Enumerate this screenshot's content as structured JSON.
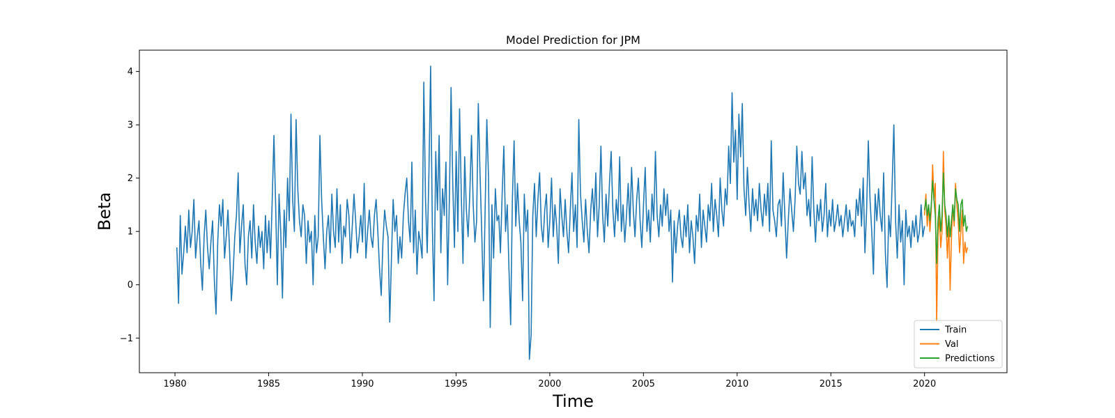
{
  "chart_data": {
    "type": "line",
    "title": "Model Prediction for JPM",
    "xlabel": "Time",
    "ylabel": "Beta",
    "xlim": [
      1978.1,
      2024.4
    ],
    "ylim": [
      -1.65,
      4.4
    ],
    "x_ticks": [
      1980,
      1985,
      1990,
      1995,
      2000,
      2005,
      2010,
      2015,
      2020
    ],
    "y_ticks": [
      -1,
      0,
      1,
      2,
      3,
      4
    ],
    "y_tick_labels": [
      "−1",
      "0",
      "1",
      "2",
      "3",
      "4"
    ],
    "grid": false,
    "legend_position": "lower-right",
    "series": [
      {
        "name": "Train",
        "color": "#1f77b4",
        "x_range": [
          1980.1,
          2020.0
        ],
        "values": [
          0.7,
          -0.35,
          1.3,
          0.2,
          0.6,
          1.1,
          0.6,
          1.4,
          0.7,
          1.0,
          1.6,
          0.5,
          0.9,
          1.2,
          0.4,
          -0.1,
          0.9,
          1.4,
          0.7,
          0.3,
          0.8,
          1.2,
          0.1,
          -0.55,
          0.8,
          1.5,
          1.1,
          1.6,
          0.5,
          0.9,
          1.4,
          0.6,
          -0.3,
          0.2,
          0.9,
          1.3,
          2.1,
          0.6,
          1.1,
          1.5,
          0.4,
          0.0,
          0.9,
          1.2,
          0.5,
          1.5,
          0.8,
          0.4,
          1.1,
          0.7,
          1.0,
          0.3,
          1.3,
          0.6,
          1.2,
          0.5,
          1.6,
          2.8,
          1.5,
          0.0,
          1.7,
          1.0,
          -0.25,
          1.4,
          0.7,
          2.0,
          1.2,
          3.2,
          1.6,
          1.0,
          3.1,
          1.8,
          1.2,
          0.9,
          1.5,
          1.3,
          0.4,
          1.2,
          0.8,
          1.0,
          0.0,
          1.3,
          0.6,
          0.9,
          2.8,
          1.6,
          0.9,
          0.3,
          1.0,
          1.3,
          0.6,
          1.7,
          1.0,
          0.7,
          1.8,
          0.8,
          1.5,
          0.4,
          1.1,
          0.9,
          1.6,
          1.3,
          0.5,
          1.1,
          1.7,
          1.2,
          0.6,
          0.9,
          1.3,
          0.8,
          1.9,
          0.5,
          1.0,
          1.4,
          0.9,
          0.7,
          1.3,
          1.6,
          1.0,
          0.3,
          -0.2,
          0.8,
          1.4,
          1.1,
          0.9,
          -0.7,
          0.5,
          1.6,
          1.0,
          1.3,
          0.4,
          0.9,
          0.5,
          1.3,
          1.7,
          2.0,
          1.2,
          0.8,
          2.3,
          0.6,
          1.4,
          0.2,
          1.0,
          0.8,
          0.5,
          3.8,
          1.6,
          0.6,
          2.1,
          4.1,
          1.1,
          -0.3,
          2.5,
          1.4,
          2.8,
          0.6,
          1.8,
          1.3,
          2.3,
          0.0,
          1.6,
          3.7,
          1.9,
          0.7,
          2.5,
          1.0,
          3.3,
          1.7,
          0.4,
          2.4,
          1.4,
          0.9,
          1.7,
          2.8,
          1.5,
          0.8,
          1.2,
          3.4,
          2.1,
          1.0,
          -0.3,
          1.4,
          3.1,
          2.0,
          -0.8,
          1.5,
          0.5,
          1.8,
          1.2,
          1.3,
          0.6,
          1.7,
          2.6,
          1.0,
          1.5,
          0.3,
          -0.75,
          1.6,
          2.7,
          1.1,
          1.9,
          1.2,
          0.8,
          -0.3,
          1.7,
          1.0,
          1.4,
          -1.4,
          -0.95,
          1.3,
          1.9,
          0.9,
          1.6,
          2.1,
          1.1,
          0.8,
          1.4,
          1.7,
          0.7,
          1.2,
          2.0,
          0.9,
          1.5,
          1.1,
          0.4,
          1.8,
          1.3,
          0.9,
          1.6,
          1.0,
          0.6,
          1.4,
          2.1,
          1.0,
          1.5,
          0.7,
          3.1,
          1.7,
          1.2,
          0.8,
          1.6,
          1.0,
          0.6,
          1.4,
          1.8,
          1.2,
          2.1,
          0.9,
          1.5,
          2.6,
          1.3,
          0.8,
          1.7,
          1.1,
          1.9,
          2.5,
          1.4,
          0.9,
          1.6,
          1.2,
          2.4,
          1.0,
          1.5,
          0.8,
          1.3,
          1.9,
          1.1,
          2.2,
          1.4,
          0.9,
          1.6,
          2.0,
          1.2,
          0.7,
          1.5,
          2.2,
          1.0,
          1.4,
          0.8,
          1.7,
          1.2,
          2.5,
          1.3,
          0.9,
          1.5,
          1.1,
          1.8,
          1.3,
          1.7,
          1.0,
          1.4,
          0.05,
          1.2,
          0.6,
          1.1,
          1.4,
          0.9,
          0.7,
          1.3,
          0.9,
          1.5,
          0.6,
          1.2,
          0.9,
          0.4,
          1.3,
          1.0,
          1.7,
          0.7,
          1.4,
          1.1,
          0.8,
          1.5,
          1.2,
          1.9,
          1.0,
          1.6,
          1.3,
          0.9,
          2.0,
          1.4,
          1.1,
          1.8,
          1.5,
          2.6,
          1.9,
          3.6,
          2.3,
          2.9,
          1.6,
          3.2,
          2.4,
          3.4,
          1.8,
          1.3,
          2.2,
          1.5,
          1.0,
          1.8,
          1.3,
          1.6,
          1.2,
          1.9,
          1.4,
          1.1,
          1.7,
          1.3,
          1.9,
          1.0,
          2.7,
          1.4,
          1.2,
          0.9,
          1.5,
          1.6,
          1.1,
          2.1,
          1.3,
          0.5,
          1.2,
          1.8,
          1.4,
          1.0,
          1.6,
          2.6,
          1.9,
          1.7,
          2.5,
          1.8,
          2.1,
          1.3,
          1.6,
          1.1,
          2.4,
          1.4,
          0.8,
          1.5,
          1.2,
          1.6,
          1.0,
          1.3,
          1.9,
          0.9,
          1.4,
          1.1,
          1.6,
          1.0,
          1.2,
          1.5,
          1.1,
          1.3,
          0.9,
          1.2,
          1.5,
          1.0,
          1.4,
          1.1,
          1.2,
          0.9,
          1.6,
          1.3,
          1.8,
          1.1,
          2.0,
          0.6,
          1.4,
          2.7,
          1.6,
          1.0,
          0.2,
          1.7,
          1.2,
          1.8,
          1.3,
          1.0,
          2.1,
          0.6,
          -0.05,
          1.3,
          0.9,
          1.9,
          3.0,
          1.2,
          0.5,
          1.5,
          0.8,
          1.2,
          0.0,
          1.4,
          0.9,
          1.1,
          0.7,
          1.2,
          0.9,
          1.3,
          0.8,
          1.0,
          1.5,
          0.9,
          1.1
        ]
      },
      {
        "name": "Val",
        "color": "#ff7f0e",
        "x_range": [
          2020.0,
          2022.3
        ],
        "values": [
          1.3,
          1.7,
          1.1,
          1.5,
          1.0,
          1.4,
          2.25,
          1.6,
          1.9,
          -0.7,
          0.9,
          1.3,
          0.7,
          1.0,
          2.5,
          1.4,
          1.1,
          0.5,
          1.2,
          -0.1,
          0.9,
          1.5,
          1.1,
          1.9,
          1.5,
          1.2,
          0.6,
          1.0,
          1.4,
          0.4,
          0.8,
          0.6,
          0.7
        ]
      },
      {
        "name": "Predictions",
        "color": "#2ca02c",
        "x_range": [
          2020.0,
          2022.3
        ],
        "values": [
          1.4,
          1.6,
          1.3,
          1.5,
          1.2,
          1.5,
          1.95,
          1.6,
          1.3,
          0.4,
          1.2,
          1.5,
          1.0,
          1.3,
          2.1,
          1.5,
          1.3,
          0.9,
          1.3,
          0.9,
          1.2,
          1.5,
          1.2,
          1.8,
          1.6,
          1.5,
          1.0,
          1.5,
          1.6,
          1.1,
          1.3,
          1.0,
          1.1
        ]
      }
    ]
  }
}
